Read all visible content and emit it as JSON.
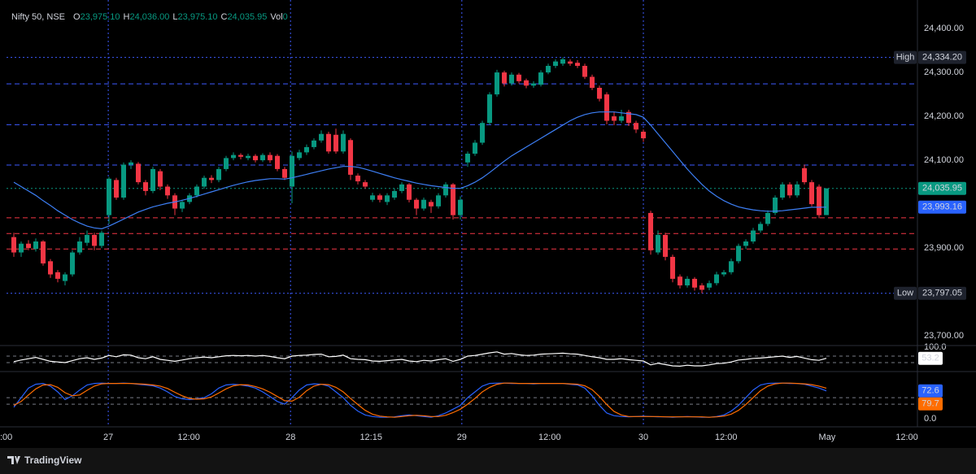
{
  "chart_data": [
    {
      "type": "candlestick",
      "title": "Nifty 50, NSE",
      "legend": [
        {
          "key": "O",
          "text": "23,975.10"
        },
        {
          "key": "H",
          "text": "24,036.00"
        },
        {
          "key": "L",
          "text": "23,975.10"
        },
        {
          "key": "C",
          "text": "24,035.95"
        },
        {
          "key": "Vol",
          "text": "0"
        }
      ],
      "up_color": "#089981",
      "down_color": "#f23645",
      "open": [
        23925,
        23890,
        23910,
        23898,
        23915,
        23870,
        23845,
        23825,
        23840,
        23890,
        23912,
        23930,
        23905,
        23975,
        24055,
        24015,
        24090,
        24092,
        24050,
        24030,
        24075,
        24040,
        24020,
        23990,
        24005,
        24020,
        24040,
        24060,
        24055,
        24080,
        24105,
        24112,
        24105,
        24110,
        24100,
        24112,
        24110,
        24080,
        24040,
        24105,
        24118,
        24130,
        24145,
        24160,
        24158,
        24120,
        24146,
        24065,
        24050,
        24010,
        24020,
        24005,
        24015,
        24030,
        24045,
        24010,
        23990,
        24005,
        23995,
        24020,
        24045,
        23975,
        24095,
        24115,
        24140,
        24185,
        24250,
        24300,
        24275,
        24295,
        24282,
        24270,
        24272,
        24300,
        24315,
        24320,
        24325,
        24322,
        24315,
        24290,
        24265,
        24250,
        24200,
        24190,
        24210,
        24185,
        24165,
        23980,
        23890,
        23930,
        23880,
        23835,
        23815,
        23830,
        23815,
        23810,
        23820,
        23840,
        23845,
        23870,
        23905,
        23915,
        23940,
        23955,
        23980,
        24015,
        24045,
        24020,
        24082,
        24050,
        24040,
        23975.1
      ],
      "high": [
        23935,
        23915,
        23918,
        23922,
        23918,
        23875,
        23850,
        23845,
        23895,
        23925,
        23940,
        23935,
        23940,
        24062,
        24060,
        24095,
        24100,
        24096,
        24055,
        24085,
        24080,
        24045,
        24025,
        24010,
        24025,
        24045,
        24065,
        24066,
        24085,
        24110,
        24118,
        24116,
        24115,
        24114,
        24116,
        24118,
        24114,
        24085,
        24120,
        24124,
        24136,
        24150,
        24168,
        24165,
        24172,
        24168,
        24150,
        24070,
        24055,
        24026,
        24024,
        24025,
        24036,
        24050,
        24048,
        24014,
        24015,
        24010,
        24025,
        24050,
        24048,
        24018,
        24120,
        24146,
        24190,
        24255,
        24306,
        24304,
        24300,
        24299,
        24286,
        24280,
        24305,
        24320,
        24330,
        24334.2,
        24330,
        24328,
        24320,
        24295,
        24270,
        24255,
        24210,
        24215,
        24215,
        24190,
        24170,
        23985,
        23940,
        23935,
        23885,
        23840,
        23836,
        23834,
        23820,
        23826,
        23846,
        23850,
        23876,
        23910,
        23920,
        23946,
        23960,
        23986,
        24020,
        24050,
        24050,
        24052,
        24090,
        24055,
        24045,
        24036
      ],
      "low": [
        23880,
        23880,
        23895,
        23892,
        23860,
        23832,
        23822,
        23815,
        23835,
        23885,
        23905,
        23895,
        23900,
        23955,
        24010,
        24010,
        24080,
        24045,
        24020,
        24025,
        24032,
        24012,
        23975,
        23982,
        24000,
        24015,
        24035,
        24048,
        24050,
        24075,
        24100,
        24102,
        24100,
        24095,
        24096,
        24094,
        24075,
        24055,
        24002,
        24100,
        24112,
        24125,
        24140,
        24115,
        24115,
        24115,
        24055,
        24045,
        24035,
        24005,
        24004,
        23998,
        24010,
        24025,
        24004,
        23975,
        23985,
        23980,
        23990,
        24015,
        23965,
        23965,
        24085,
        24110,
        24135,
        24180,
        24245,
        24268,
        24270,
        24275,
        24264,
        24265,
        24268,
        24296,
        24310,
        24315,
        24315,
        24310,
        24285,
        24260,
        24234,
        24182,
        24180,
        24185,
        24178,
        24162,
        24142,
        23885,
        23885,
        23872,
        23822,
        23808,
        23810,
        23803,
        23797.05,
        23804,
        23815,
        23835,
        23840,
        23865,
        23898,
        23910,
        23935,
        23950,
        23975,
        24010,
        24014,
        24015,
        24045,
        23995,
        23968,
        23975.1
      ],
      "close": [
        23890,
        23910,
        23900,
        23915,
        23865,
        23840,
        23830,
        23840,
        23890,
        23915,
        23930,
        23905,
        23935,
        24058,
        24015,
        24090,
        24095,
        24050,
        24030,
        24080,
        24040,
        24020,
        23990,
        24005,
        24020,
        24040,
        24060,
        24055,
        24080,
        24105,
        24112,
        24108,
        24110,
        24100,
        24112,
        24100,
        24080,
        24060,
        24110,
        24118,
        24130,
        24145,
        24160,
        24120,
        24120,
        24160,
        24067,
        24052,
        24040,
        24020,
        24010,
        24020,
        24030,
        24045,
        24010,
        23990,
        24010,
        23995,
        24020,
        24045,
        23975,
        24010,
        24115,
        24140,
        24185,
        24250,
        24300,
        24275,
        24295,
        24280,
        24270,
        24275,
        24300,
        24315,
        24325,
        24330,
        24320,
        24315,
        24290,
        24265,
        24240,
        24190,
        24190,
        24200,
        24185,
        24170,
        24150,
        23895,
        23930,
        23880,
        23830,
        23815,
        23830,
        23810,
        23805,
        23820,
        23840,
        23845,
        23870,
        23905,
        23915,
        23940,
        23955,
        23980,
        24015,
        24045,
        24020,
        24045,
        24050,
        24000,
        23975,
        24035.95
      ],
      "ma": {
        "color": "#3d7ff5",
        "values": [
          24050,
          24040,
          24030,
          24020,
          24008,
          23997,
          23985,
          23975,
          23965,
          23957,
          23950,
          23946,
          23944,
          23950,
          23958,
          23966,
          23974,
          23982,
          23988,
          23994,
          23998,
          24002,
          24005,
          24009,
          24013,
          24018,
          24023,
          24028,
          24033,
          24038,
          24043,
          24047,
          24051,
          24054,
          24056,
          24058,
          24058,
          24057,
          24060,
          24064,
          24068,
          24072,
          24076,
          24080,
          24083,
          24086,
          24086,
          24084,
          24080,
          24075,
          24070,
          24065,
          24060,
          24056,
          24052,
          24048,
          24045,
          24042,
          24040,
          24038,
          24036,
          24036,
          24042,
          24050,
          24060,
          24072,
          24085,
          24098,
          24110,
          24120,
          24130,
          24140,
          24150,
          24160,
          24170,
          24180,
          24190,
          24198,
          24204,
          24208,
          24210,
          24210,
          24210,
          24208,
          24206,
          24204,
          24198,
          24180,
          24160,
          24140,
          24120,
          24100,
          24080,
          24062,
          24045,
          24030,
          24018,
          24008,
          24000,
          23994,
          23990,
          23987,
          23985,
          23984,
          23984,
          23985,
          23987,
          23989,
          23991,
          23993,
          23993,
          23993.16
        ]
      },
      "xlim": [
        -1,
        123.44
      ],
      "xticks": [
        {
          "value": -1,
          "label": ":00"
        },
        {
          "value": 12.9,
          "label": "27"
        },
        {
          "value": 23.9,
          "label": "12:00"
        },
        {
          "value": 37.8,
          "label": "28"
        },
        {
          "value": 48.8,
          "label": "12:15"
        },
        {
          "value": 61.2,
          "label": "29"
        },
        {
          "value": 73.2,
          "label": "12:00"
        },
        {
          "value": 86,
          "label": "30"
        },
        {
          "value": 97.3,
          "label": "12:00"
        },
        {
          "value": 111.1,
          "label": "May"
        },
        {
          "value": 122,
          "label": "12:00"
        }
      ],
      "vlines": [
        12.9,
        37.8,
        61.2,
        86
      ],
      "ylim": [
        23678,
        24465
      ],
      "yticks": [
        {
          "value": 24400,
          "label": "24,400.00"
        },
        {
          "value": 24300,
          "label": "24,300.00"
        },
        {
          "value": 24200,
          "label": "24,200.00"
        },
        {
          "value": 24100,
          "label": "24,100.00"
        },
        {
          "value": 23900,
          "label": "23,900.00"
        },
        {
          "value": 23700,
          "label": "23,700.00"
        }
      ],
      "hlines": [
        {
          "value": 24274,
          "color": "#3d5afe",
          "style": "dashed"
        },
        {
          "value": 24181,
          "color": "#3d5afe",
          "style": "dashed"
        },
        {
          "value": 24089,
          "color": "#3d5afe",
          "style": "dashed"
        },
        {
          "value": 23969,
          "color": "#f23645",
          "style": "dashed"
        },
        {
          "value": 23933,
          "color": "#f23645",
          "style": "dashed"
        },
        {
          "value": 23898,
          "color": "#f23645",
          "style": "dashed"
        }
      ],
      "price_labels": [
        {
          "label": "High",
          "value": 24334.2,
          "value_label": "24,334.20",
          "color": "#1e222d",
          "line_color": "#3d5afe"
        },
        {
          "label": "Low",
          "value": 23797.05,
          "value_label": "23,797.05",
          "color": "#1e222d",
          "line_color": "#3d5afe"
        },
        {
          "value": 24035.95,
          "value_label": "24,035.95",
          "color": "#089981",
          "line_color": "#089981"
        },
        {
          "value": 23993.16,
          "value_label": "23,993.16",
          "color": "#2962ff"
        }
      ]
    },
    {
      "type": "line",
      "color": "#ffffff",
      "label_color": "#ffffff",
      "values": [
        43,
        48,
        52,
        56,
        50,
        44,
        42,
        40,
        46,
        52,
        55,
        50,
        54,
        62,
        58,
        64,
        63,
        55,
        52,
        58,
        50,
        47,
        44,
        48,
        52,
        55,
        57,
        55,
        58,
        61,
        62,
        61,
        62,
        60,
        62,
        59,
        55,
        52,
        60,
        62,
        63,
        65,
        66,
        58,
        59,
        63,
        52,
        50,
        49,
        45,
        44,
        46,
        48,
        50,
        45,
        43,
        47,
        45,
        49,
        52,
        44,
        50,
        60,
        62,
        66,
        70,
        73,
        66,
        68,
        64,
        62,
        63,
        66,
        67,
        68,
        69,
        67,
        66,
        62,
        58,
        55,
        50,
        50,
        52,
        49,
        47,
        45,
        33,
        38,
        34,
        30,
        29,
        32,
        30,
        30,
        33,
        37,
        38,
        42,
        48,
        50,
        53,
        54,
        56,
        58,
        60,
        56,
        59,
        54,
        49,
        47,
        53.2
      ],
      "ylim": [
        12.5,
        100
      ],
      "yticks": [
        {
          "value": 100,
          "label": "100.0"
        }
      ],
      "levels": [
        60,
        40
      ]
    },
    {
      "type": "line",
      "series": [
        {
          "color": "#2962ff",
          "values": [
            30,
            55,
            80,
            90,
            92,
            85,
            70,
            50,
            60,
            75,
            88,
            92,
            93,
            92,
            92,
            93,
            92,
            90,
            88,
            86,
            80,
            70,
            58,
            52,
            50,
            52,
            55,
            65,
            80,
            88,
            90,
            88,
            85,
            80,
            70,
            58,
            45,
            38,
            55,
            75,
            88,
            91,
            90,
            85,
            70,
            55,
            35,
            20,
            10,
            6,
            4,
            4,
            5,
            8,
            10,
            8,
            6,
            4,
            8,
            15,
            25,
            35,
            55,
            70,
            85,
            92,
            93,
            93,
            92,
            92,
            92,
            91,
            92,
            92,
            92,
            92,
            90,
            88,
            80,
            60,
            35,
            15,
            8,
            6,
            5,
            6,
            7,
            6,
            5,
            5,
            4,
            5,
            6,
            5,
            4,
            4,
            6,
            10,
            20,
            35,
            55,
            75,
            88,
            92,
            93,
            93,
            92,
            92,
            90,
            85,
            80,
            72.6
          ]
        },
        {
          "color": "#ff6d00",
          "values": [
            35,
            45,
            62,
            78,
            88,
            89,
            82,
            68,
            60,
            62,
            74,
            85,
            91,
            92,
            92,
            92,
            92,
            91,
            90,
            88,
            85,
            79,
            69,
            60,
            53,
            51,
            52,
            57,
            67,
            78,
            86,
            89,
            88,
            84,
            78,
            69,
            58,
            47,
            46,
            56,
            73,
            85,
            90,
            89,
            82,
            70,
            53,
            37,
            22,
            12,
            7,
            5,
            4,
            6,
            8,
            9,
            8,
            6,
            6,
            9,
            16,
            25,
            38,
            53,
            70,
            82,
            90,
            93,
            93,
            92,
            92,
            92,
            92,
            92,
            92,
            92,
            91,
            90,
            86,
            76,
            58,
            37,
            19,
            10,
            6,
            6,
            6,
            6,
            6,
            5,
            5,
            5,
            5,
            5,
            5,
            4,
            5,
            7,
            12,
            22,
            37,
            55,
            73,
            85,
            91,
            93,
            93,
            92,
            91,
            89,
            85,
            79.7
          ]
        }
      ],
      "ylim": [
        -21,
        123
      ],
      "yticks": [
        {
          "value": 0,
          "label": "0.0"
        }
      ],
      "levels": [
        55,
        38
      ]
    }
  ],
  "footer": {
    "brand": "TradingView"
  }
}
